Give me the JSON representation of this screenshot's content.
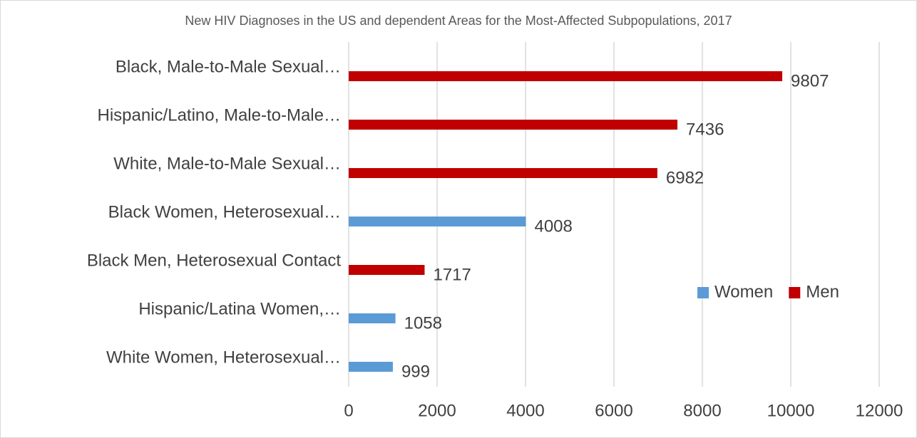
{
  "chart_data": {
    "type": "hbar",
    "title": "New HIV Diagnoses in the US and dependent Areas for the Most-Affected Subpopulations, 2017",
    "categories": [
      "Black, Male-to-Male Sexual…",
      "Hispanic/Latino, Male-to-Male…",
      "White, Male-to-Male Sexual…",
      "Black Women, Heterosexual…",
      "Black Men, Heterosexual Contact",
      "Hispanic/Latina Women,…",
      "White Women, Heterosexual…"
    ],
    "series": [
      {
        "name": "Women",
        "color": "#5b9bd5",
        "values": [
          null,
          null,
          null,
          4008,
          null,
          1058,
          999
        ]
      },
      {
        "name": "Men",
        "color": "#c00000",
        "values": [
          9807,
          7436,
          6982,
          null,
          1717,
          null,
          null
        ]
      }
    ],
    "xlim": [
      0,
      12000
    ],
    "xticks": [
      0,
      2000,
      4000,
      6000,
      8000,
      10000,
      12000
    ],
    "grid": true,
    "legend": "right"
  }
}
